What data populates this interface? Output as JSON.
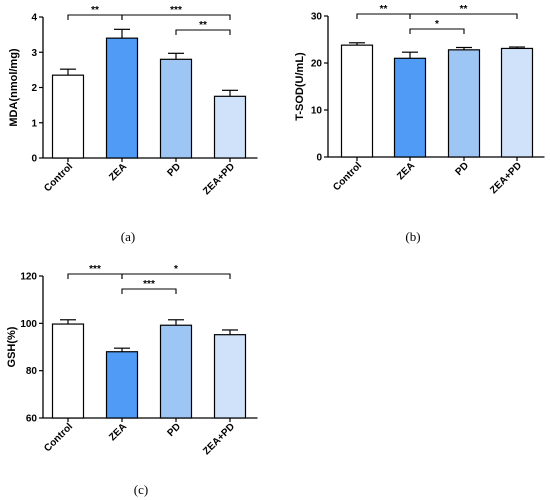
{
  "chart_data": [
    {
      "id": "a",
      "type": "bar",
      "caption": "(a)",
      "ylabel": "MDA(nmol/mg)",
      "ylim": [
        0,
        4
      ],
      "yticks": [
        0,
        1,
        2,
        3,
        4
      ],
      "categories": [
        "Control",
        "ZEA",
        "PD",
        "ZEA+PD"
      ],
      "values": [
        2.35,
        3.4,
        2.8,
        1.75
      ],
      "errors": [
        0.17,
        0.25,
        0.17,
        0.17
      ],
      "bar_colors": [
        "#ffffff",
        "#4f9bf5",
        "#9ec6f5",
        "#cfe2f9"
      ],
      "significance": [
        {
          "from": 0,
          "to": 1,
          "label": "**",
          "level": 0
        },
        {
          "from": 1,
          "to": 3,
          "label": "***",
          "level": 0
        },
        {
          "from": 2,
          "to": 3,
          "label": "**",
          "level": 1
        }
      ]
    },
    {
      "id": "b",
      "type": "bar",
      "caption": "(b)",
      "ylabel": "T-SOD(U/mL)",
      "ylim": [
        0,
        30
      ],
      "yticks": [
        0,
        10,
        20,
        30
      ],
      "categories": [
        "Control",
        "ZEA",
        "PD",
        "ZEA+PD"
      ],
      "values": [
        23.8,
        21.0,
        22.8,
        23.1
      ],
      "errors": [
        0.5,
        1.3,
        0.5,
        0.3
      ],
      "bar_colors": [
        "#ffffff",
        "#4f9bf5",
        "#9ec6f5",
        "#cfe2f9"
      ],
      "significance": [
        {
          "from": 0,
          "to": 1,
          "label": "**",
          "level": 0
        },
        {
          "from": 1,
          "to": 3,
          "label": "**",
          "level": 0
        },
        {
          "from": 1,
          "to": 2,
          "label": "*",
          "level": 1
        }
      ]
    },
    {
      "id": "c",
      "type": "bar",
      "caption": "(c)",
      "ylabel": "GSH(%)",
      "ylim": [
        60,
        120
      ],
      "yticks": [
        60,
        80,
        100,
        120
      ],
      "categories": [
        "Control",
        "ZEA",
        "PD",
        "ZEA+PD"
      ],
      "values": [
        99.7,
        88.0,
        99.2,
        95.2
      ],
      "errors": [
        1.8,
        1.5,
        2.3,
        2.0
      ],
      "bar_colors": [
        "#ffffff",
        "#4f9bf5",
        "#9ec6f5",
        "#cfe2f9"
      ],
      "significance": [
        {
          "from": 0,
          "to": 1,
          "label": "***",
          "level": 0
        },
        {
          "from": 1,
          "to": 3,
          "label": "*",
          "level": 0
        },
        {
          "from": 1,
          "to": 2,
          "label": "***",
          "level": 1
        }
      ]
    }
  ]
}
